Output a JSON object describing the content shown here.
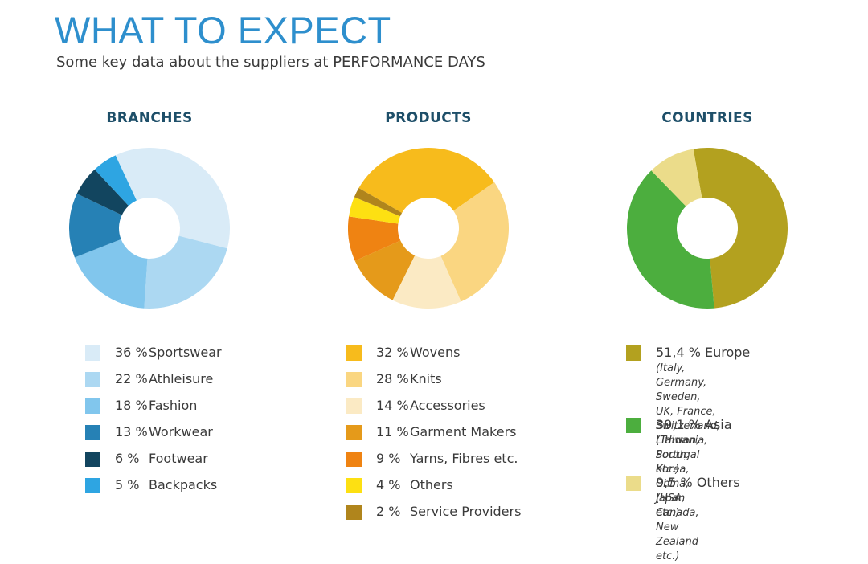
{
  "header": {
    "title": "WHAT TO EXPECT",
    "subtitle": "Some key data about the suppliers at PERFORMANCE DAYS"
  },
  "chart_data": [
    {
      "type": "pie",
      "title": "BRANCHES",
      "slices": [
        {
          "pct": "36 %",
          "label": "Sportswear",
          "value": 36,
          "color": "#d9ebf7"
        },
        {
          "pct": "22 %",
          "label": "Athleisure",
          "value": 22,
          "color": "#acd8f2"
        },
        {
          "pct": "18 %",
          "label": "Fashion",
          "value": 18,
          "color": "#81c6ed"
        },
        {
          "pct": "13 %",
          "label": "Workwear",
          "value": 13,
          "color": "#2681b5"
        },
        {
          "pct": "6 %",
          "label": "Footwear",
          "value": 6,
          "color": "#12455f"
        },
        {
          "pct": "5 %",
          "label": "Backpacks",
          "value": 5,
          "color": "#2ea5e2"
        }
      ]
    },
    {
      "type": "pie",
      "title": "PRODUCTS",
      "slices": [
        {
          "pct": "32 %",
          "label": "Wovens",
          "value": 32,
          "color": "#f7bb1c"
        },
        {
          "pct": "28 %",
          "label": "Knits",
          "value": 28,
          "color": "#fad681"
        },
        {
          "pct": "14 %",
          "label": "Accessories",
          "value": 14,
          "color": "#fbeac4"
        },
        {
          "pct": "11 %",
          "label": "Garment Makers",
          "value": 11,
          "color": "#e59a1a"
        },
        {
          "pct": "9 %",
          "label": "Yarns, Fibres etc.",
          "value": 9,
          "color": "#ef8312"
        },
        {
          "pct": "4 %",
          "label": "Others",
          "value": 4,
          "color": "#fde012"
        },
        {
          "pct": "2 %",
          "label": "Service Providers",
          "value": 2,
          "color": "#b0851c"
        }
      ]
    },
    {
      "type": "pie",
      "title": "COUNTRIES",
      "slices": [
        {
          "pct": "51,4 % Europe",
          "label": "Europe",
          "value": 51.4,
          "color": "#b3a11f",
          "note": "(Italy, Germany, Sweden,\nUK, France, Switzerland,\nLithuania, Portugal etc.)"
        },
        {
          "pct": "39,1 % Asia",
          "label": "Asia",
          "value": 39.1,
          "color": "#4cae3e",
          "note": "(Taiwan, South Korea,\nChina, Japan etc.)"
        },
        {
          "pct": "9,5 % Others",
          "label": "Others",
          "value": 9.5,
          "color": "#ebdc8a",
          "note": "(USA, Canada,\nNew Zealand etc.)"
        }
      ]
    }
  ]
}
